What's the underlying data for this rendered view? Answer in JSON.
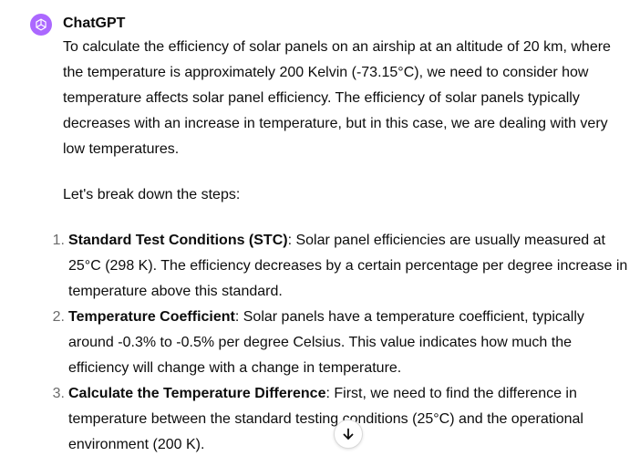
{
  "message": {
    "author": "ChatGPT",
    "avatar_icon": "openai-logo-icon",
    "avatar_color": "#ab68ff",
    "intro": "To calculate the efficiency of solar panels on an airship at an altitude of 20 km, where the temperature is approximately 200 Kelvin (-73.15°C), we need to consider how temperature affects solar panel efficiency. The efficiency of solar panels typically decreases with an increase in temperature, but in this case, we are dealing with very low temperatures.",
    "lead": "Let's break down the steps:",
    "steps": [
      {
        "number": "1.",
        "term": "Standard Test Conditions (STC)",
        "text": ": Solar panel efficiencies are usually measured at 25°C (298 K). The efficiency decreases by a certain percentage per degree increase in temperature above this standard."
      },
      {
        "number": "2.",
        "term": "Temperature Coefficient",
        "text": ": Solar panels have a temperature coefficient, typically around -0.3% to -0.5% per degree Celsius. This value indicates how much the efficiency will change with a change in temperature."
      },
      {
        "number": "3.",
        "term": "Calculate the Temperature Difference",
        "text": ": First, we need to find the difference in temperature between the standard testing conditions (25°C) and the operational environment (200 K)."
      }
    ]
  },
  "scroll_button": {
    "icon": "arrow-down-icon"
  }
}
